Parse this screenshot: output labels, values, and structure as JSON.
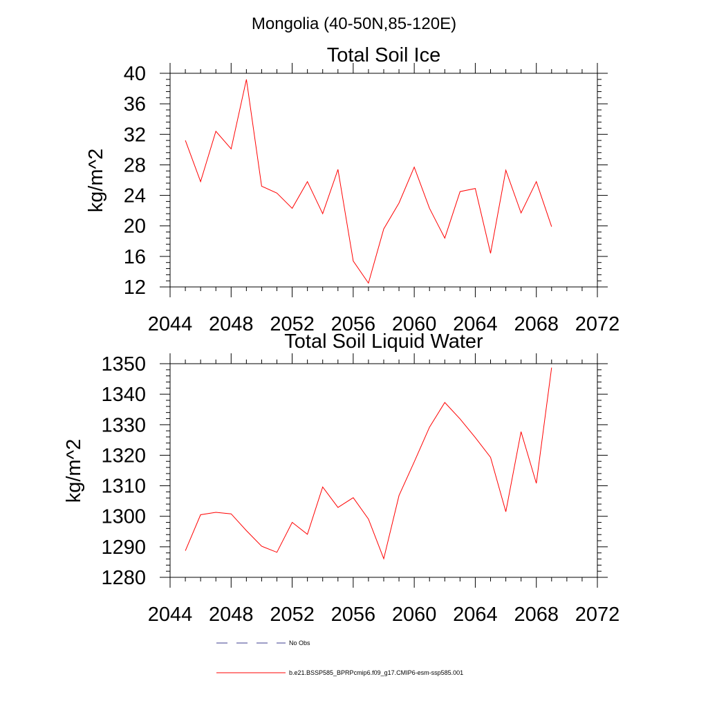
{
  "main_title": "Mongolia (40-50N,85-120E)",
  "chart_data": [
    {
      "type": "line",
      "title": "Total Soil Ice",
      "xlabel": "",
      "ylabel": "kg/m^2",
      "xlim": [
        2044,
        2072
      ],
      "ylim": [
        12,
        40
      ],
      "xticks": [
        2044,
        2048,
        2052,
        2056,
        2060,
        2064,
        2068,
        2072
      ],
      "yticks": [
        12,
        16,
        20,
        24,
        28,
        32,
        36,
        40
      ],
      "grid": false,
      "series": [
        {
          "color": "#ff0000",
          "x": [
            2045,
            2046,
            2047,
            2048,
            2049,
            2050,
            2051,
            2052,
            2053,
            2054,
            2055,
            2056,
            2057,
            2058,
            2059,
            2060,
            2061,
            2062,
            2063,
            2064,
            2065,
            2066,
            2067,
            2068,
            2069
          ],
          "values": [
            31.2,
            25.8,
            32.4,
            30.1,
            39.2,
            25.2,
            24.3,
            22.3,
            25.8,
            21.6,
            27.4,
            15.4,
            12.5,
            19.6,
            23.0,
            27.7,
            22.3,
            18.4,
            24.5,
            24.9,
            16.4,
            27.3,
            21.7,
            25.8,
            19.9
          ]
        }
      ]
    },
    {
      "type": "line",
      "title": "Total Soil Liquid Water",
      "xlabel": "",
      "ylabel": "kg/m^2",
      "xlim": [
        2044,
        2072
      ],
      "ylim": [
        1280,
        1350
      ],
      "xticks": [
        2044,
        2048,
        2052,
        2056,
        2060,
        2064,
        2068,
        2072
      ],
      "yticks": [
        1280,
        1290,
        1300,
        1310,
        1320,
        1330,
        1340,
        1350
      ],
      "grid": false,
      "series": [
        {
          "color": "#ff0000",
          "x": [
            2045,
            2046,
            2047,
            2048,
            2049,
            2050,
            2051,
            2052,
            2053,
            2054,
            2055,
            2056,
            2057,
            2058,
            2059,
            2060,
            2061,
            2062,
            2063,
            2064,
            2065,
            2066,
            2067,
            2068,
            2069
          ],
          "values": [
            1288.7,
            1300.5,
            1301.3,
            1300.8,
            1295.3,
            1290.2,
            1288.2,
            1298.0,
            1294.1,
            1309.6,
            1302.9,
            1306.1,
            1299.1,
            1286.1,
            1306.8,
            1317.8,
            1329.2,
            1337.3,
            1331.9,
            1325.8,
            1319.3,
            1301.5,
            1327.7,
            1310.8,
            1348.7
          ]
        }
      ]
    }
  ],
  "legend": [
    {
      "label": "No Obs",
      "style": "dashed",
      "color": "#3b3b8f"
    },
    {
      "label": "b.e21.BSSP585_BPRPcmip6.f09_g17.CMIP6-esm-ssp585.001",
      "style": "solid",
      "color": "#ff0000"
    }
  ]
}
